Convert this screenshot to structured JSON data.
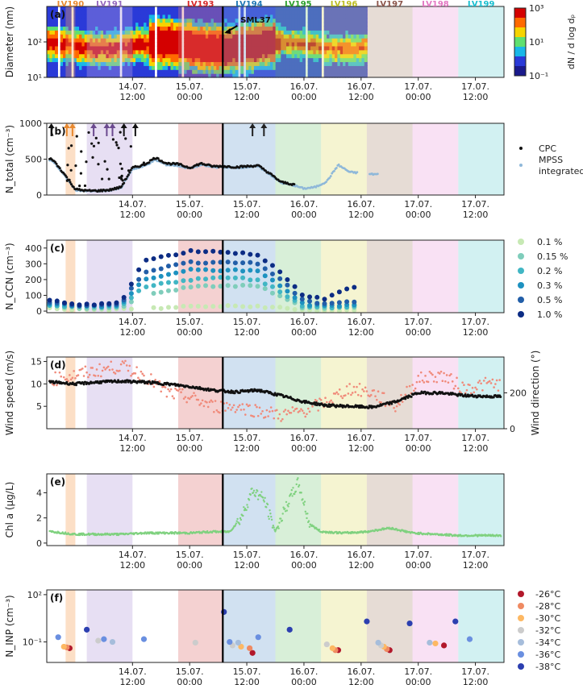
{
  "figure": {
    "x_tick_labels": [
      "14.07.\n12:00",
      "15.07.\n00:00",
      "15.07.\n12:00",
      "16.07.\n00:00",
      "16.07.\n12:00",
      "17.07.\n00:00",
      "17.07.\n12:00"
    ],
    "sml_label": "SML37",
    "legs": [
      {
        "name": "LV190",
        "color": "#f5a25d",
        "start": -1.17,
        "end": -1.0
      },
      {
        "name": "LV191",
        "color": "#b9a2de",
        "start": -0.8,
        "end": 0.0
      },
      {
        "name": "LV193",
        "color": "#e07b7b",
        "start": 0.8,
        "end": 1.58
      },
      {
        "name": "LV194",
        "color": "#7aaad6",
        "start": 1.58,
        "end": 2.5
      },
      {
        "name": "LV195",
        "color": "#8fd18f",
        "start": 2.5,
        "end": 3.3
      },
      {
        "name": "LV196",
        "color": "#e3e07a",
        "start": 3.3,
        "end": 4.1
      },
      {
        "name": "LV197",
        "color": "#b89a86",
        "start": 4.1,
        "end": 4.9
      },
      {
        "name": "LV198",
        "color": "#efa8e0",
        "start": 4.9,
        "end": 5.7
      },
      {
        "name": "LV199",
        "color": "#7ed6d9",
        "start": 5.7,
        "end": 6.5
      }
    ],
    "leg_label_colors": [
      "#e8892f",
      "#9467bd",
      "#d62728",
      "#1f77b4",
      "#2ca02c",
      "#bcbd22",
      "#8c564b",
      "#e377c2",
      "#17becf"
    ],
    "ship_marker_x": 1.58
  },
  "panels": {
    "a": {
      "label": "(a)",
      "ylabel": "Diameter (nm)",
      "yticks": [
        "10¹",
        "10²"
      ],
      "colorbar_label": "dN / d log dₚ",
      "colorbar_ticks": [
        "10³",
        "10¹",
        "10⁻¹"
      ]
    },
    "b": {
      "label": "(b)",
      "ylabel": "N_total (cm⁻³)",
      "yticks": [
        "0",
        "500",
        "1000"
      ],
      "legend": [
        "CPC",
        "MPSS integrated"
      ]
    },
    "c": {
      "label": "(c)",
      "ylabel": "N_CCN (cm⁻³)",
      "yticks": [
        "0",
        "100",
        "200",
        "300",
        "400"
      ],
      "legend": [
        "0.1 %",
        "0.15 %",
        "0.2 %",
        "0.3 %",
        "0.5 %",
        "1.0 %"
      ]
    },
    "d": {
      "label": "(d)",
      "ylabel": "Wind speed (m/s)",
      "ylabel_right": "Wind direction (°)",
      "yticks": [
        "5",
        "10",
        "15"
      ],
      "yticks_right": [
        "0",
        "200"
      ]
    },
    "e": {
      "label": "(e)",
      "ylabel": "Chl a (μg/L)",
      "yticks": [
        "0",
        "2",
        "4"
      ]
    },
    "f": {
      "label": "(f)",
      "ylabel": "N_INP (cm⁻³)",
      "yticks": [
        "10²",
        "10⁻¹"
      ],
      "legend": [
        "-26°C",
        "-28°C",
        "-30°C",
        "-32°C",
        "-34°C",
        "-36°C",
        "-38°C"
      ]
    }
  },
  "chart_data": [
    {
      "type": "heatmap",
      "panel": "a",
      "ylabel": "Diameter (nm)",
      "y_scale": "log",
      "ylim": [
        10,
        1000
      ],
      "colorbar_range": [
        0.1,
        1000
      ],
      "colorbar_label": "dN / d log dp"
    },
    {
      "type": "scatter",
      "panel": "b",
      "ylabel": "N_total (cm-3)",
      "ylim": [
        0,
        1000
      ],
      "series": [
        {
          "name": "CPC",
          "x": [
            -1.4,
            -1.2,
            -1.0,
            -0.8,
            -0.6,
            -0.4,
            -0.2,
            0.0,
            0.2,
            0.4,
            0.6,
            0.8,
            1.0,
            1.2,
            1.4,
            1.6,
            1.8,
            2.0,
            2.2,
            2.4,
            2.6,
            2.8
          ],
          "y": [
            500,
            300,
            80,
            60,
            60,
            70,
            110,
            380,
            420,
            520,
            440,
            430,
            380,
            440,
            400,
            400,
            390,
            400,
            410,
            300,
            180,
            150
          ]
        },
        {
          "name": "MPSS integrated",
          "x": [
            -1.4,
            -1.2,
            -1.0,
            -0.8,
            -0.6,
            -0.4,
            -0.2,
            0.0,
            0.2,
            0.4,
            0.6,
            0.8,
            1.0,
            1.2,
            1.4,
            1.6,
            1.8,
            2.0,
            2.2,
            2.4,
            2.6,
            2.8,
            3.0,
            3.2,
            3.4,
            3.6,
            3.8,
            4.2
          ],
          "y": [
            480,
            280,
            70,
            55,
            55,
            65,
            100,
            360,
            400,
            490,
            420,
            410,
            370,
            420,
            390,
            390,
            380,
            390,
            400,
            290,
            170,
            140,
            90,
            110,
            190,
            420,
            320,
            290
          ]
        }
      ]
    },
    {
      "type": "scatter",
      "panel": "c",
      "ylabel": "N_CCN (cm-3)",
      "ylim": [
        0,
        450
      ],
      "x": [
        -1.4,
        -1.0,
        -0.6,
        -0.2,
        0.2,
        0.6,
        1.0,
        1.4,
        1.8,
        2.2,
        2.6,
        3.0,
        3.4,
        3.8
      ],
      "series": [
        {
          "name": "0.1 %",
          "values": [
            20,
            10,
            10,
            10,
            20,
            20,
            30,
            30,
            30,
            30,
            20,
            5,
            5,
            5
          ]
        },
        {
          "name": "0.15 %",
          "values": [
            30,
            20,
            20,
            20,
            100,
            130,
            150,
            160,
            160,
            160,
            90,
            20,
            15,
            20
          ]
        },
        {
          "name": "0.2 %",
          "values": [
            40,
            25,
            25,
            30,
            150,
            180,
            200,
            210,
            210,
            200,
            120,
            30,
            25,
            30
          ]
        },
        {
          "name": "0.3 %",
          "values": [
            50,
            30,
            30,
            40,
            200,
            230,
            260,
            260,
            260,
            250,
            160,
            40,
            35,
            40
          ]
        },
        {
          "name": "0.5 %",
          "values": [
            60,
            35,
            35,
            50,
            250,
            280,
            310,
            310,
            310,
            300,
            200,
            60,
            50,
            60
          ]
        },
        {
          "name": "1.0 %",
          "values": [
            70,
            40,
            40,
            60,
            320,
            350,
            380,
            380,
            370,
            360,
            240,
            90,
            80,
            150
          ]
        }
      ]
    },
    {
      "type": "scatter",
      "panel": "d",
      "ylabel": "Wind speed (m/s)",
      "ylabel_right": "Wind direction (deg)",
      "ylim": [
        0,
        16
      ],
      "ylim_right": [
        0,
        400
      ],
      "series": [
        {
          "name": "Wind speed",
          "x": [
            -1.4,
            -1.0,
            -0.6,
            -0.2,
            0.2,
            0.6,
            1.0,
            1.4,
            1.8,
            2.2,
            2.6,
            3.0,
            3.4,
            3.8,
            4.2,
            4.6,
            5.0,
            5.4,
            5.8,
            6.2
          ],
          "y": [
            11,
            12,
            13,
            14,
            12,
            8,
            7,
            5,
            5,
            4,
            3,
            4,
            6,
            9,
            8,
            5,
            11,
            12,
            9,
            10
          ]
        },
        {
          "name": "Wind direction",
          "x": [
            -1.4,
            -1.0,
            -0.6,
            -0.2,
            0.2,
            0.6,
            1.0,
            1.4,
            1.8,
            2.2,
            2.6,
            3.0,
            3.4,
            3.8,
            4.2,
            4.6,
            5.0,
            5.4,
            5.8,
            6.2
          ],
          "y": [
            260,
            250,
            260,
            265,
            260,
            250,
            235,
            215,
            205,
            215,
            185,
            150,
            130,
            125,
            120,
            150,
            200,
            200,
            185,
            180
          ]
        }
      ]
    },
    {
      "type": "scatter",
      "panel": "e",
      "ylabel": "Chl a (ug/L)",
      "ylim": [
        0,
        5.5
      ],
      "x": [
        -1.4,
        -1.0,
        -0.6,
        -0.2,
        0.2,
        0.6,
        1.0,
        1.4,
        1.7,
        1.9,
        2.1,
        2.3,
        2.5,
        2.7,
        2.9,
        3.1,
        3.3,
        3.7,
        4.1,
        4.5,
        4.9,
        5.3,
        5.7,
        6.1,
        6.5
      ],
      "y": [
        0.9,
        0.7,
        0.7,
        0.7,
        0.8,
        0.8,
        0.8,
        0.9,
        0.9,
        2.0,
        4.2,
        3.5,
        0.9,
        3.0,
        4.8,
        1.5,
        0.9,
        0.8,
        0.9,
        1.2,
        0.8,
        0.7,
        0.6,
        0.6,
        0.6
      ]
    },
    {
      "type": "scatter",
      "panel": "f",
      "ylabel": "N_INP (cm-3)",
      "y_scale": "log",
      "ylim": [
        0.005,
        100
      ],
      "series": [
        {
          "name": "-26°C",
          "x": [
            -1.1,
            2.1,
            3.6,
            4.5,
            5.45
          ],
          "y": [
            0.04,
            0.02,
            0.03,
            0.03,
            0.06
          ]
        },
        {
          "name": "-28°C",
          "x": [
            -1.15,
            2.05,
            3.55,
            4.45
          ],
          "y": [
            0.045,
            0.04,
            0.03,
            0.035
          ]
        },
        {
          "name": "-30°C",
          "x": [
            -1.2,
            1.9,
            3.5,
            4.4,
            5.3
          ],
          "y": [
            0.05,
            0.05,
            0.04,
            0.05,
            0.08
          ]
        },
        {
          "name": "-32°C",
          "x": [
            -0.6,
            1.1,
            1.75,
            3.4,
            4.35
          ],
          "y": [
            0.12,
            0.09,
            0.06,
            0.07,
            0.06
          ]
        },
        {
          "name": "-34°C",
          "x": [
            -0.35,
            1.85,
            4.3,
            5.2
          ],
          "y": [
            0.1,
            0.09,
            0.09,
            0.09
          ]
        },
        {
          "name": "-36°C",
          "x": [
            -1.3,
            -0.5,
            0.2,
            1.7,
            2.2,
            5.9
          ],
          "y": [
            0.2,
            0.15,
            0.15,
            0.1,
            0.2,
            0.15
          ]
        },
        {
          "name": "-38°C",
          "x": [
            -0.8,
            1.6,
            2.75,
            4.1,
            4.85,
            5.65
          ],
          "y": [
            0.6,
            8,
            0.6,
            2,
            1.5,
            2
          ]
        }
      ]
    }
  ]
}
